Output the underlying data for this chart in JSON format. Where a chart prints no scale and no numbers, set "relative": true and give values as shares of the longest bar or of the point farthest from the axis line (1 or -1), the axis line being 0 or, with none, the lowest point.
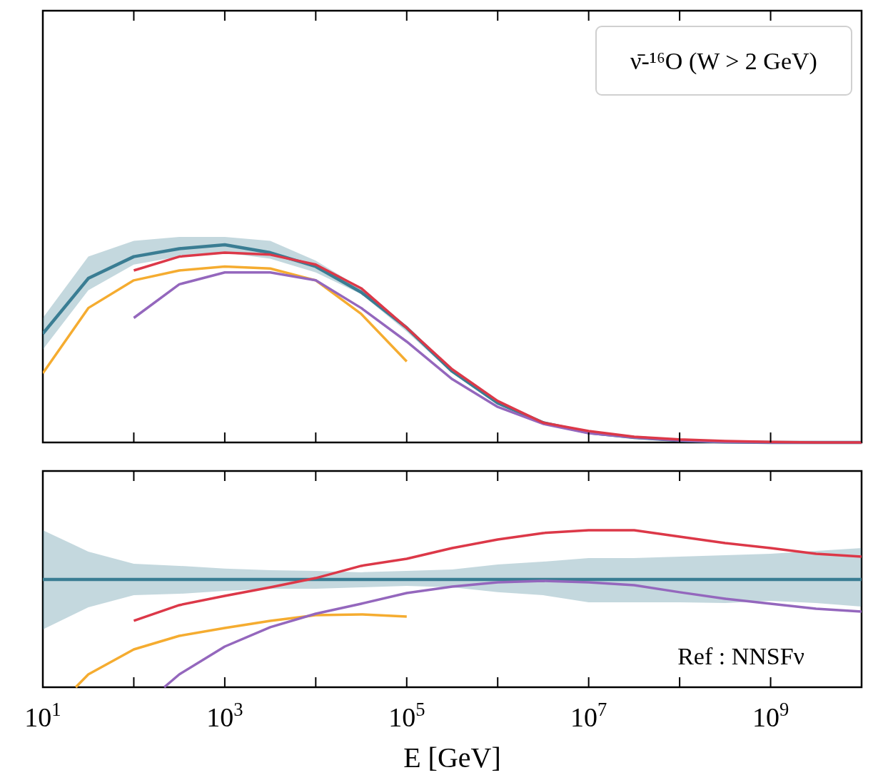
{
  "chart_data": [
    {
      "type": "line",
      "relative": true,
      "tick_labels": false,
      "annotations": [
        "ν̄-¹⁶O (W > 2 GeV)"
      ],
      "xlim": [
        10,
        10000000000
      ],
      "log": "x",
      "xticks": [
        {
          "value": 10,
          "label": null
        },
        {
          "value": 100,
          "label": null
        },
        {
          "value": 1000,
          "label": null
        },
        {
          "value": 10000,
          "label": null
        },
        {
          "value": 100000,
          "label": null
        },
        {
          "value": 1000000,
          "label": null
        },
        {
          "value": 10000000,
          "label": null
        },
        {
          "value": 100000000,
          "label": null
        },
        {
          "value": 1000000000,
          "label": null
        },
        {
          "value": 10000000000,
          "label": null
        }
      ],
      "series": [
        {
          "color": "#3a7d93",
          "x": [
            10,
            31.62,
            100,
            316.2,
            1000,
            3162,
            10000,
            31623,
            100000,
            316228,
            1000000,
            3162278,
            10000000,
            31622777,
            100000000,
            316227766,
            1000000000,
            3162277660,
            10000000000
          ],
          "values": [
            0.55,
            0.83,
            0.94,
            0.98,
            1.0,
            0.96,
            0.89,
            0.76,
            0.58,
            0.36,
            0.2,
            0.1,
            0.05,
            0.025,
            0.01,
            0.003,
            0,
            0,
            0
          ],
          "upper": [
            0.63,
            0.94,
            1.02,
            1.04,
            1.04,
            1.02,
            0.92,
            0.78,
            0.59,
            0.37,
            0.21,
            0.1,
            0.05,
            0.026,
            0.01,
            0.003,
            0,
            0,
            0
          ],
          "lower": [
            0.47,
            0.77,
            0.9,
            0.94,
            0.96,
            0.93,
            0.86,
            0.75,
            0.56,
            0.35,
            0.19,
            0.098,
            0.049,
            0.024,
            0.01,
            0.003,
            0,
            0,
            0
          ]
        },
        {
          "color": "#f5ac30",
          "x": [
            10,
            31.62,
            100,
            316.2,
            1000,
            3162,
            10000,
            31623,
            100000
          ],
          "values": [
            0.35,
            0.68,
            0.82,
            0.87,
            0.89,
            0.88,
            0.82,
            0.65,
            0.41
          ]
        },
        {
          "color": "#9467bd",
          "x": [
            100,
            316.2,
            1000,
            3162,
            10000,
            31623,
            100000,
            316228,
            1000000,
            3162278,
            10000000,
            31622777,
            100000000,
            316227766,
            1000000000,
            3162277660,
            10000000000
          ],
          "values": [
            0.63,
            0.8,
            0.86,
            0.86,
            0.82,
            0.68,
            0.51,
            0.32,
            0.18,
            0.094,
            0.047,
            0.025,
            0.01,
            0.003,
            0,
            0,
            0
          ]
        },
        {
          "color": "#dc3848",
          "x": [
            100,
            316.2,
            1000,
            3162,
            10000,
            31623,
            100000,
            316228,
            1000000,
            3162278,
            10000000,
            31622777,
            100000000,
            316227766,
            1000000000,
            3162277660,
            10000000000
          ],
          "values": [
            0.87,
            0.94,
            0.96,
            0.95,
            0.9,
            0.78,
            0.58,
            0.37,
            0.21,
            0.1,
            0.058,
            0.029,
            0.015,
            0.007,
            0.003,
            0,
            0
          ]
        }
      ]
    },
    {
      "type": "line",
      "relative": true,
      "tick_labels": "x",
      "xlabel": "E [GeV]",
      "annotations": [
        "Ref : NNSFν"
      ],
      "xlim": [
        10,
        10000000000
      ],
      "log": "x",
      "xticks": [
        {
          "value": 10,
          "label": "10$^{1}$"
        },
        {
          "value": 100,
          "label": null
        },
        {
          "value": 1000,
          "label": "10$^{3}$"
        },
        {
          "value": 10000,
          "label": null
        },
        {
          "value": 100000,
          "label": "10$^{5}$"
        },
        {
          "value": 1000000,
          "label": null
        },
        {
          "value": 10000000,
          "label": "10$^{7}$"
        },
        {
          "value": 100000000,
          "label": null
        },
        {
          "value": 1000000000,
          "label": "10$^{9}$"
        },
        {
          "value": 10000000000,
          "label": null
        }
      ],
      "series": [
        {
          "color": "#3a7d93",
          "x": [
            10,
            31.62,
            100,
            316.2,
            1000,
            3162,
            10000,
            31623,
            100000,
            316228,
            1000000,
            3162278,
            10000000,
            31622777,
            100000000,
            316227766,
            1000000000,
            3162277660,
            10000000000
          ],
          "values": [
            0.686,
            0.686,
            0.686,
            0.686,
            0.686,
            0.686,
            0.686,
            0.686,
            0.686,
            0.686,
            0.686,
            0.686,
            0.686,
            0.686,
            0.686,
            0.686,
            0.686,
            0.686,
            0.686
          ],
          "upper": [
            1.0,
            0.864,
            0.786,
            0.773,
            0.755,
            0.745,
            0.741,
            0.732,
            0.741,
            0.75,
            0.782,
            0.8,
            0.823,
            0.823,
            0.832,
            0.841,
            0.85,
            0.868,
            0.886
          ],
          "lower": [
            0.368,
            0.509,
            0.586,
            0.595,
            0.614,
            0.627,
            0.627,
            0.636,
            0.645,
            0.636,
            0.605,
            0.586,
            0.541,
            0.541,
            0.541,
            0.536,
            0.55,
            0.536,
            0.514
          ]
        },
        {
          "color": "#f5ac30",
          "x": [
            23,
            31.62,
            100,
            316.2,
            1000,
            3162,
            10000,
            31623,
            100000
          ],
          "values": [
            0,
            0.082,
            0.241,
            0.327,
            0.377,
            0.423,
            0.459,
            0.464,
            0.45
          ]
        },
        {
          "color": "#9467bd",
          "x": [
            216,
            316.2,
            1000,
            3162,
            10000,
            31623,
            100000,
            316228,
            1000000,
            3162278,
            10000000,
            31622777,
            100000000,
            316227766,
            1000000000,
            3162277660,
            10000000000
          ],
          "values": [
            0,
            0.082,
            0.259,
            0.382,
            0.468,
            0.532,
            0.6,
            0.641,
            0.668,
            0.677,
            0.668,
            0.65,
            0.605,
            0.564,
            0.532,
            0.5,
            0.482
          ]
        },
        {
          "color": "#dc3848",
          "x": [
            100,
            316.2,
            1000,
            3162,
            10000,
            31623,
            100000,
            316228,
            1000000,
            3162278,
            10000000,
            31622777,
            100000000,
            316227766,
            1000000000,
            3162277660,
            10000000000
          ],
          "values": [
            0.423,
            0.523,
            0.582,
            0.636,
            0.695,
            0.773,
            0.818,
            0.886,
            0.941,
            0.982,
            1.0,
            1.0,
            0.959,
            0.918,
            0.886,
            0.85,
            0.832
          ]
        }
      ]
    }
  ]
}
